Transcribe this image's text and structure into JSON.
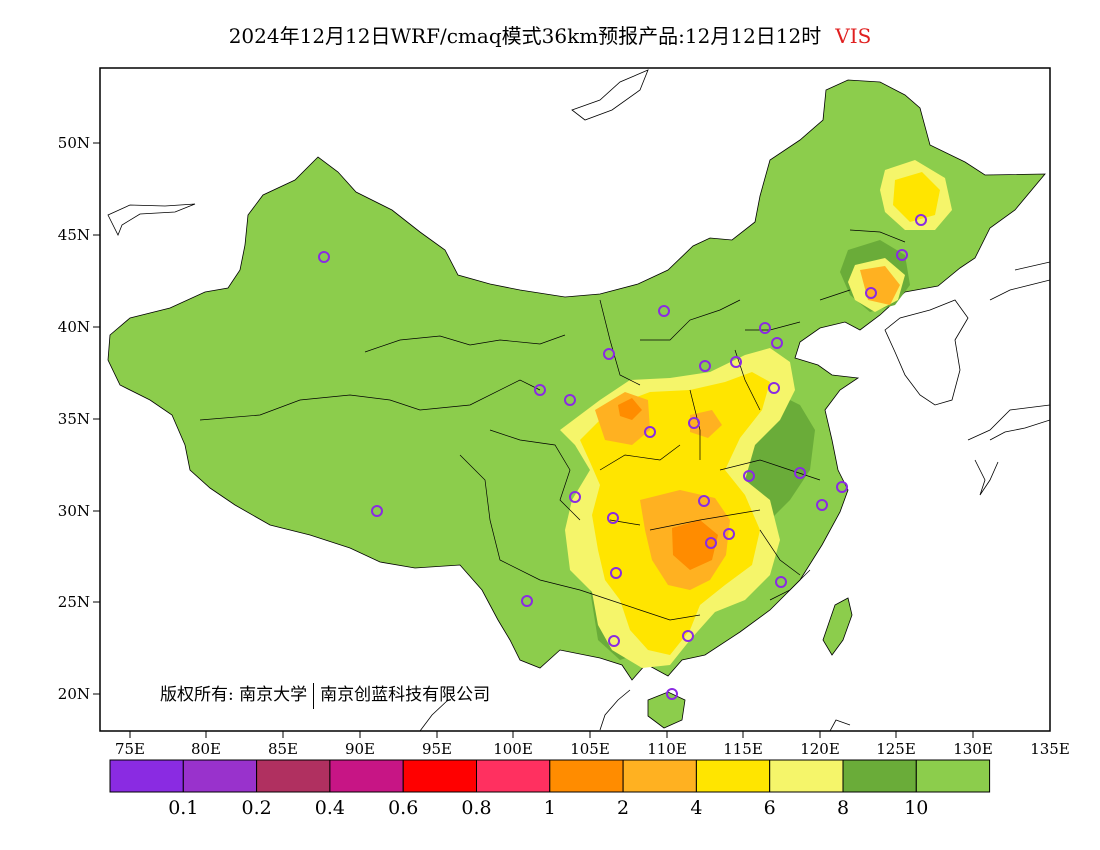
{
  "title": {
    "main": "2024年12月12日WRF/cmaq模式36km预报产品:12月12日12时",
    "variable": "VIS"
  },
  "map": {
    "lon_ticks": [
      "75E",
      "80E",
      "85E",
      "90E",
      "95E",
      "100E",
      "105E",
      "110E",
      "115E",
      "120E",
      "125E",
      "130E",
      "135E"
    ],
    "lat_ticks": [
      "20N",
      "25N",
      "30N",
      "35N",
      "40N",
      "45N",
      "50N"
    ],
    "colors": {
      "background": "#ffffff",
      "land_base": "#8ccd4c",
      "land_dark": "#6aac39",
      "light_yellow": "#f5f56a",
      "yellow": "#ffe500",
      "light_orange": "#ffb121",
      "orange": "#ff8c00",
      "station_marker": "#8a2be2",
      "boundary": "#000000"
    }
  },
  "colorbar": {
    "colors": [
      "#8a2be2",
      "#9932cc",
      "#b03060",
      "#c71585",
      "#ff0000",
      "#ff3060",
      "#ff8c00",
      "#ffb121",
      "#ffe500",
      "#f5f56a",
      "#6aac39",
      "#8ccd4c"
    ],
    "labels": [
      "0.1",
      "0.2",
      "0.4",
      "0.6",
      "0.8",
      "1",
      "2",
      "4",
      "6",
      "8",
      "10"
    ]
  },
  "copyright": {
    "left": "版权所有: 南京大学",
    "right": "南京创蓝科技有限公司"
  }
}
